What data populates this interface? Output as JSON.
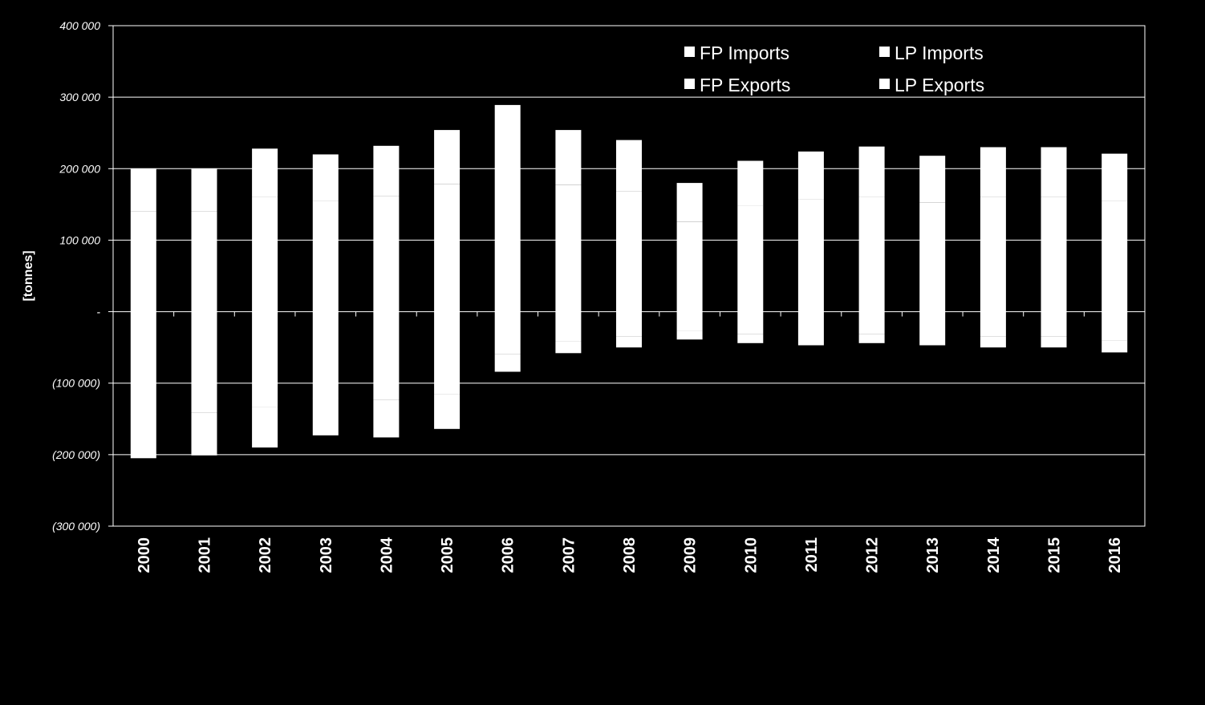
{
  "chart_data": {
    "type": "bar",
    "stacked": true,
    "categories": [
      "2000",
      "2001",
      "2002",
      "2003",
      "2004",
      "2005",
      "2006",
      "2007",
      "2008",
      "2009",
      "2010",
      "2011",
      "2012",
      "2013",
      "2014",
      "2015",
      "2016"
    ],
    "series": [
      {
        "name": "FP Imports",
        "color": "#ffffff",
        "values": [
          140000,
          140000,
          160000,
          155000,
          162000,
          178000,
          202000,
          177000,
          168000,
          126000,
          148000,
          157000,
          161000,
          153000,
          161000,
          161000,
          155000
        ]
      },
      {
        "name": "LP Imports",
        "color": "#ffffff",
        "values": [
          60000,
          60000,
          68000,
          65000,
          70000,
          76000,
          87000,
          77000,
          72000,
          54000,
          63000,
          67000,
          70000,
          65000,
          69000,
          69000,
          66000
        ]
      },
      {
        "name": "FP Exports",
        "color": "#ffffff",
        "values": [
          -144000,
          -141000,
          -133000,
          -121000,
          -123000,
          -115000,
          -59000,
          -41000,
          -35000,
          -27000,
          -31000,
          -33000,
          -31000,
          -33000,
          -35000,
          -35000,
          -40000
        ]
      },
      {
        "name": "LP Exports",
        "color": "#ffffff",
        "values": [
          -61000,
          -60000,
          -57000,
          -52000,
          -53000,
          -49000,
          -25000,
          -17000,
          -15000,
          -12000,
          -13000,
          -14000,
          -13000,
          -14000,
          -15000,
          -15000,
          -17000
        ]
      }
    ],
    "ylabel": "[tonnes]",
    "ylim": [
      -300000,
      400000
    ],
    "yticks": [
      {
        "value": 400000,
        "label": "400 000"
      },
      {
        "value": 300000,
        "label": "300 000"
      },
      {
        "value": 200000,
        "label": "200 000"
      },
      {
        "value": 100000,
        "label": "100 000"
      },
      {
        "value": 0,
        "label": "-"
      },
      {
        "value": -100000,
        "label": "(100 000)"
      },
      {
        "value": -200000,
        "label": "(200 000)"
      },
      {
        "value": -300000,
        "label": "(300 000)"
      }
    ],
    "grid": true,
    "legend_position": "top-right",
    "background": "#000000",
    "foreground": "#ffffff"
  }
}
